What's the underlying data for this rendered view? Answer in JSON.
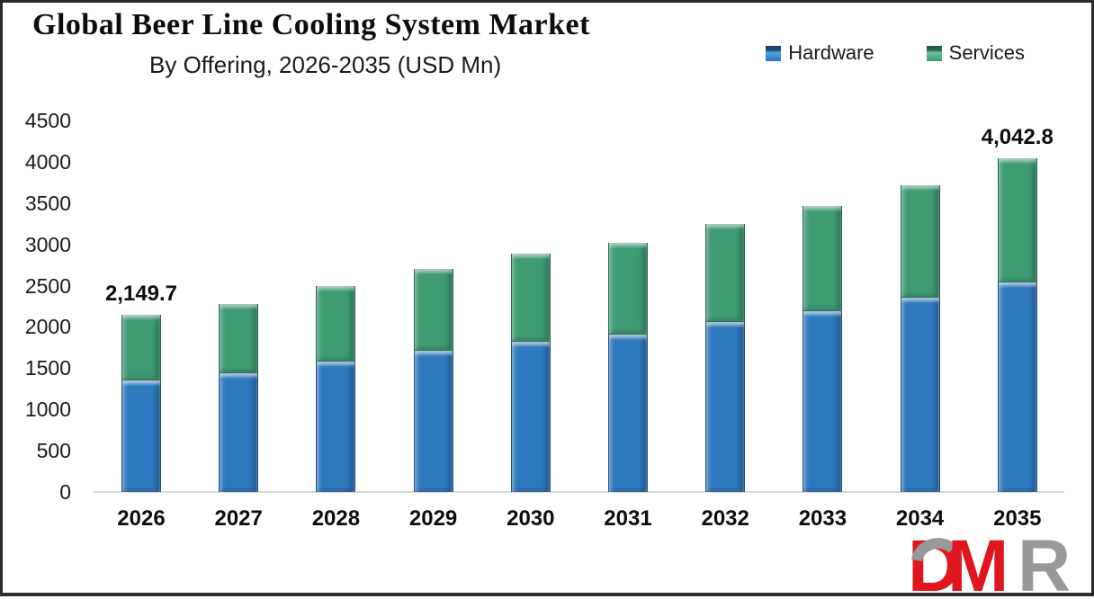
{
  "header": {
    "title": "Global Beer Line Cooling System Market",
    "subtitle": "By Offering, 2026-2035 (USD Mn)"
  },
  "legend": {
    "items": [
      {
        "label": "Hardware",
        "color": "#2e79be"
      },
      {
        "label": "Services",
        "color": "#3f9b74"
      }
    ]
  },
  "logo": {
    "letters": [
      "D",
      "M",
      "R"
    ],
    "red": "#e0161d",
    "gray": "#97999b"
  },
  "chart_data": {
    "type": "bar",
    "stacked": true,
    "title": "Global Beer Line Cooling System Market",
    "subtitle": "By Offering, 2026-2035 (USD Mn)",
    "unit": "USD Mn",
    "categories": [
      "2026",
      "2027",
      "2028",
      "2029",
      "2030",
      "2031",
      "2032",
      "2033",
      "2034",
      "2035"
    ],
    "series": [
      {
        "name": "Hardware",
        "color": "#2e79be",
        "values": [
          1355,
          1440,
          1580,
          1710,
          1820,
          1910,
          2060,
          2190,
          2355,
          2540
        ]
      },
      {
        "name": "Services",
        "color": "#3f9b74",
        "values": [
          794.7,
          840,
          915,
          990,
          1070,
          1110,
          1190,
          1270,
          1365,
          1502.8
        ]
      }
    ],
    "totals": [
      2149.7,
      2280,
      2495,
      2700,
      2890,
      3020,
      3250,
      3460,
      3720,
      4042.8
    ],
    "bar_labels": [
      {
        "index": 0,
        "text": "2,149.7"
      },
      {
        "index": 9,
        "text": "4,042.8"
      }
    ],
    "yticks": [
      0,
      500,
      1000,
      1500,
      2000,
      2500,
      3000,
      3500,
      4000,
      4500
    ],
    "ylim": [
      0,
      4500
    ],
    "xlabel": "",
    "ylabel": "",
    "grid": false,
    "legend_position": "top-right"
  }
}
